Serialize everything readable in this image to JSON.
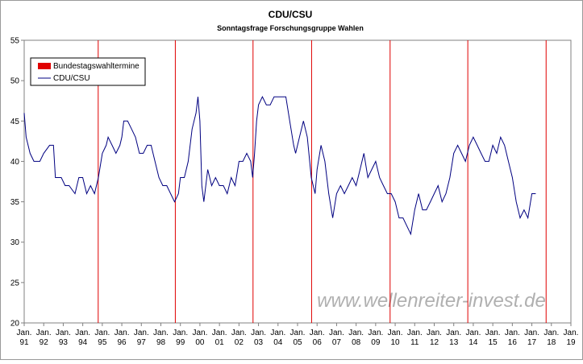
{
  "chart_data": {
    "type": "line",
    "title": "CDU/CSU",
    "subtitle": "Sonntagsfrage Forschungsgruppe Wahlen",
    "watermark": "www.wellenreiter-invest.de",
    "xlim": [
      1991,
      2019
    ],
    "xticks": [
      {
        "value": 1991,
        "label": "Jan. 91"
      },
      {
        "value": 1992,
        "label": "Jan. 92"
      },
      {
        "value": 1993,
        "label": "Jan. 93"
      },
      {
        "value": 1994,
        "label": "Jan. 94"
      },
      {
        "value": 1995,
        "label": "Jan. 95"
      },
      {
        "value": 1996,
        "label": "Jan. 96"
      },
      {
        "value": 1997,
        "label": "Jan. 97"
      },
      {
        "value": 1998,
        "label": "Jan. 98"
      },
      {
        "value": 1999,
        "label": "Jan. 99"
      },
      {
        "value": 2000,
        "label": "Jan. 00"
      },
      {
        "value": 2001,
        "label": "Jan. 01"
      },
      {
        "value": 2002,
        "label": "Jan. 02"
      },
      {
        "value": 2003,
        "label": "Jan. 03"
      },
      {
        "value": 2004,
        "label": "Jan. 04"
      },
      {
        "value": 2005,
        "label": "Jan. 05"
      },
      {
        "value": 2006,
        "label": "Jan. 06"
      },
      {
        "value": 2007,
        "label": "Jan. 07"
      },
      {
        "value": 2008,
        "label": "Jan. 08"
      },
      {
        "value": 2009,
        "label": "Jan. 09"
      },
      {
        "value": 2010,
        "label": "Jan. 10"
      },
      {
        "value": 2011,
        "label": "Jan. 11"
      },
      {
        "value": 2012,
        "label": "Jan. 12"
      },
      {
        "value": 2013,
        "label": "Jan. 13"
      },
      {
        "value": 2014,
        "label": "Jan. 14"
      },
      {
        "value": 2015,
        "label": "Jan. 15"
      },
      {
        "value": 2016,
        "label": "Jan. 16"
      },
      {
        "value": 2017,
        "label": "Jan. 17"
      },
      {
        "value": 2018,
        "label": "Jan. 18"
      },
      {
        "value": 2019,
        "label": "Jan. 19"
      }
    ],
    "ylim": [
      20,
      55
    ],
    "yticks": [
      20,
      25,
      30,
      35,
      40,
      45,
      50,
      55
    ],
    "events": {
      "name": "Bundestagswahltermine",
      "color": "#e00000",
      "x": [
        1994.79,
        1998.74,
        2002.72,
        2005.72,
        2009.74,
        2013.72,
        2017.73
      ]
    },
    "series": [
      {
        "name": "CDU/CSU",
        "color": "#000080",
        "x": [
          1991.0,
          1991.1,
          1991.3,
          1991.5,
          1991.8,
          1992.0,
          1992.3,
          1992.5,
          1992.6,
          1992.9,
          1993.1,
          1993.3,
          1993.6,
          1993.8,
          1994.0,
          1994.2,
          1994.4,
          1994.6,
          1994.8,
          1995.0,
          1995.2,
          1995.3,
          1995.5,
          1995.7,
          1995.9,
          1996.0,
          1996.1,
          1996.3,
          1996.5,
          1996.7,
          1996.9,
          1997.1,
          1997.3,
          1997.5,
          1997.7,
          1997.9,
          1998.1,
          1998.3,
          1998.5,
          1998.7,
          1998.9,
          1999.0,
          1999.2,
          1999.4,
          1999.6,
          1999.8,
          1999.9,
          2000.0,
          2000.1,
          2000.2,
          2000.4,
          2000.6,
          2000.8,
          2001.0,
          2001.2,
          2001.4,
          2001.6,
          2001.8,
          2002.0,
          2002.2,
          2002.4,
          2002.6,
          2002.7,
          2002.8,
          2002.9,
          2003.0,
          2003.2,
          2003.4,
          2003.6,
          2003.8,
          2004.0,
          2004.2,
          2004.4,
          2004.6,
          2004.8,
          2004.9,
          2005.1,
          2005.3,
          2005.5,
          2005.7,
          2005.9,
          2006.0,
          2006.2,
          2006.4,
          2006.6,
          2006.8,
          2007.0,
          2007.2,
          2007.4,
          2007.6,
          2007.8,
          2008.0,
          2008.2,
          2008.4,
          2008.6,
          2008.8,
          2009.0,
          2009.2,
          2009.4,
          2009.6,
          2009.8,
          2010.0,
          2010.2,
          2010.4,
          2010.6,
          2010.8,
          2011.0,
          2011.2,
          2011.4,
          2011.6,
          2011.8,
          2012.0,
          2012.2,
          2012.4,
          2012.6,
          2012.8,
          2013.0,
          2013.2,
          2013.4,
          2013.6,
          2013.8,
          2014.0,
          2014.2,
          2014.4,
          2014.6,
          2014.8,
          2015.0,
          2015.2,
          2015.4,
          2015.6,
          2015.8,
          2016.0,
          2016.2,
          2016.4,
          2016.6,
          2016.8,
          2017.0,
          2017.2
        ],
        "values": [
          46,
          43,
          41,
          40,
          40,
          41,
          42,
          42,
          38,
          38,
          37,
          37,
          36,
          38,
          38,
          36,
          37,
          36,
          38,
          41,
          42,
          43,
          42,
          41,
          42,
          43,
          45,
          45,
          44,
          43,
          41,
          41,
          42,
          42,
          40,
          38,
          37,
          37,
          36,
          35,
          36,
          38,
          38,
          40,
          44,
          46,
          48,
          45,
          37,
          35,
          39,
          37,
          38,
          37,
          37,
          36,
          38,
          37,
          40,
          40,
          41,
          40,
          38,
          41,
          45,
          47,
          48,
          47,
          47,
          48,
          48,
          48,
          48,
          45,
          42,
          41,
          43,
          45,
          43,
          38,
          36,
          39,
          42,
          40,
          36,
          33,
          36,
          37,
          36,
          37,
          38,
          37,
          39,
          41,
          38,
          39,
          40,
          38,
          37,
          36,
          36,
          35,
          33,
          33,
          32,
          31,
          34,
          36,
          34,
          34,
          35,
          36,
          37,
          35,
          36,
          38,
          41,
          42,
          41,
          40,
          42,
          43,
          42,
          41,
          40,
          40,
          42,
          41,
          43,
          42,
          40,
          38,
          35,
          33,
          34,
          33,
          36,
          36
        ]
      }
    ]
  }
}
